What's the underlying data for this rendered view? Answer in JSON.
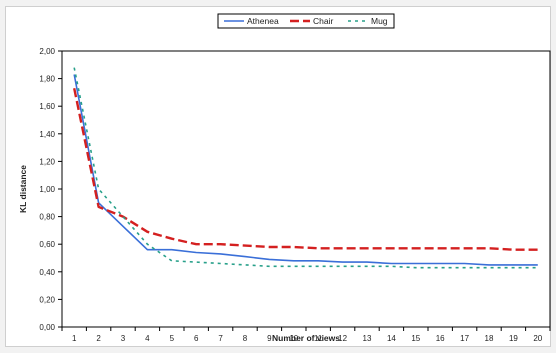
{
  "chart_data": {
    "type": "line",
    "title": "",
    "xlabel": "Number of views",
    "ylabel": "KL distance",
    "x": [
      1,
      2,
      3,
      4,
      5,
      6,
      7,
      8,
      9,
      10,
      11,
      12,
      13,
      14,
      15,
      16,
      17,
      18,
      19,
      20
    ],
    "ylim": [
      0,
      2
    ],
    "yticks": [
      "0,00",
      "0,20",
      "0,40",
      "0,60",
      "0,80",
      "1,00",
      "1,20",
      "1,40",
      "1,60",
      "1,80",
      "2,00"
    ],
    "grid": false,
    "legend_position": "top-center",
    "series": [
      {
        "name": "Athenea",
        "color": "#3a6fd8",
        "style": "solid",
        "values": [
          1.83,
          0.9,
          0.73,
          0.56,
          0.56,
          0.54,
          0.53,
          0.51,
          0.49,
          0.48,
          0.48,
          0.47,
          0.47,
          0.46,
          0.46,
          0.46,
          0.46,
          0.45,
          0.45,
          0.45
        ]
      },
      {
        "name": "Chair",
        "color": "#d42020",
        "style": "dashed",
        "values": [
          1.73,
          0.87,
          0.8,
          0.69,
          0.64,
          0.6,
          0.6,
          0.59,
          0.58,
          0.58,
          0.57,
          0.57,
          0.57,
          0.57,
          0.57,
          0.57,
          0.57,
          0.57,
          0.56,
          0.56
        ]
      },
      {
        "name": "Mug",
        "color": "#28a08a",
        "style": "dotted",
        "values": [
          1.88,
          1.0,
          0.8,
          0.6,
          0.48,
          0.47,
          0.46,
          0.45,
          0.44,
          0.44,
          0.44,
          0.44,
          0.44,
          0.44,
          0.43,
          0.43,
          0.43,
          0.43,
          0.43,
          0.43
        ]
      }
    ]
  }
}
